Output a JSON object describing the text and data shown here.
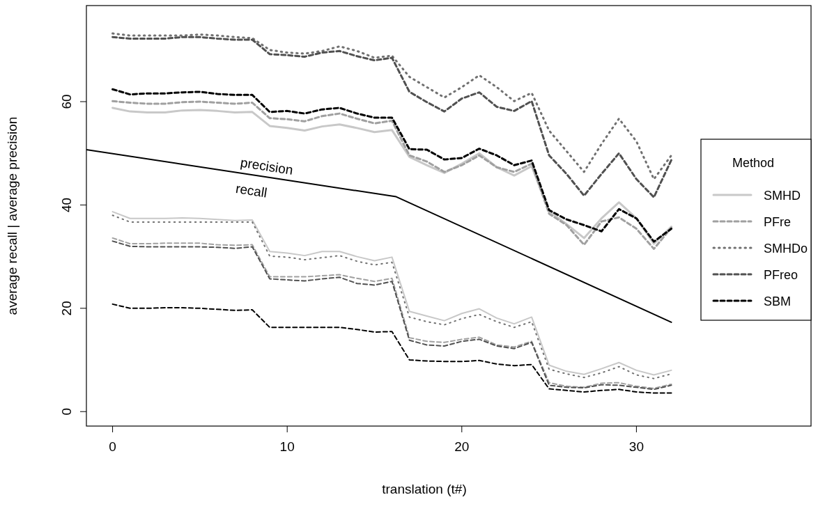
{
  "chart_data": {
    "type": "line",
    "xlabel": "translation (t#)",
    "ylabel": "average recall  |  average precision",
    "legend_title": "Method",
    "legend": "right",
    "grid": false,
    "marker": "none",
    "x": [
      0,
      1,
      2,
      3,
      4,
      5,
      6,
      7,
      8,
      9,
      10,
      11,
      12,
      13,
      14,
      15,
      16,
      17,
      18,
      19,
      20,
      21,
      22,
      23,
      24,
      25,
      26,
      27,
      28,
      29,
      30,
      31,
      32
    ],
    "xlim": [
      -1.5,
      40
    ],
    "ylim": [
      -2.8,
      78.6
    ],
    "xticks": [
      0,
      10,
      20,
      30
    ],
    "yticks": [
      0,
      20,
      40,
      60
    ],
    "series": [
      {
        "name": "SMHD",
        "color": "#c8c8c8",
        "line_style": "solid",
        "values": [
          58.8,
          58.1,
          57.9,
          57.9,
          58.3,
          58.4,
          58.2,
          57.9,
          58,
          55.3,
          54.9,
          54.4,
          55.2,
          55.6,
          54.9,
          54.1,
          54.5,
          49.3,
          47.7,
          46.2,
          48,
          50,
          47.3,
          45.7,
          47.5,
          38.8,
          36.3,
          33.6,
          37.4,
          40.5,
          37.4,
          32.5,
          35.8
        ]
      },
      {
        "name": "PFre",
        "color": "#a0a0a0",
        "line_style": "dashed",
        "values": [
          60.1,
          59.8,
          59.6,
          59.6,
          59.9,
          60,
          59.8,
          59.6,
          59.8,
          56.8,
          56.6,
          56.2,
          57.2,
          57.7,
          56.7,
          55.8,
          56.3,
          49.6,
          48.4,
          46.4,
          47.7,
          49.6,
          47.3,
          46.4,
          48,
          38.3,
          36.1,
          32.3,
          36.8,
          37.6,
          35.4,
          31.5,
          35.6
        ]
      },
      {
        "name": "SMHDo",
        "color": "#707070",
        "line_style": "dotted",
        "values": [
          73.2,
          72.8,
          72.8,
          72.8,
          72.8,
          73,
          72.8,
          72.5,
          72.3,
          70,
          69.5,
          69.3,
          69.8,
          70.7,
          69.8,
          68.5,
          68.9,
          64.8,
          62.8,
          60.8,
          62.8,
          65.1,
          62.8,
          60.1,
          61.7,
          54.4,
          50.4,
          46.4,
          51.8,
          56.7,
          52.3,
          45,
          49.6
        ]
      },
      {
        "name": "PFreo",
        "color": "#505050",
        "line_style": "dashed",
        "values": [
          72.5,
          72.2,
          72.2,
          72.2,
          72.5,
          72.5,
          72.2,
          72,
          72,
          69.2,
          69,
          68.7,
          69.5,
          69.8,
          68.8,
          68,
          68.5,
          61.9,
          59.9,
          58.1,
          60.6,
          61.8,
          59,
          58.2,
          60.1,
          49.6,
          46,
          41.8,
          46,
          50,
          45,
          41.5,
          48.7
        ]
      },
      {
        "name": "SBM",
        "color": "#000000",
        "line_style": "dashed",
        "values": [
          62.4,
          61.4,
          61.6,
          61.6,
          61.8,
          61.9,
          61.5,
          61.3,
          61.3,
          58,
          58.2,
          57.7,
          58.5,
          58.8,
          57.7,
          56.9,
          56.9,
          50.8,
          50.7,
          48.8,
          49.1,
          50.9,
          49.6,
          47.7,
          48.6,
          39,
          37.2,
          36.1,
          34.9,
          39.2,
          37.4,
          32.9,
          35.4
        ]
      },
      {
        "color": "#c8c8c8",
        "line_style": "solid",
        "values": [
          38.7,
          37.4,
          37.4,
          37.4,
          37.5,
          37.4,
          37.2,
          37,
          37.1,
          31,
          30.7,
          30.2,
          31,
          31,
          30,
          29.2,
          29.9,
          19.4,
          18.5,
          17.6,
          19,
          19.9,
          18.1,
          17,
          18.3,
          9,
          7.8,
          7.2,
          8.3,
          9.5,
          8,
          7.1,
          8
        ]
      },
      {
        "color": "#a0a0a0",
        "line_style": "dashed",
        "values": [
          33.6,
          32.5,
          32.5,
          32.6,
          32.6,
          32.6,
          32.3,
          32.2,
          32.3,
          26.1,
          26.1,
          26.1,
          26.3,
          26.5,
          25.8,
          25.2,
          25.8,
          14.3,
          13.6,
          13.4,
          14,
          14.4,
          12.9,
          12.5,
          13.6,
          5.6,
          4.9,
          4.7,
          5.5,
          5.6,
          4.9,
          4.5,
          5.3
        ]
      },
      {
        "color": "#707070",
        "line_style": "dotted",
        "values": [
          38,
          36.7,
          36.7,
          36.7,
          36.7,
          36.7,
          36.7,
          36.7,
          36.7,
          30.1,
          29.9,
          29.4,
          29.8,
          30.2,
          29.1,
          28.4,
          28.9,
          18.3,
          17.4,
          16.8,
          18,
          18.8,
          17.4,
          16.3,
          17.4,
          8.2,
          7.3,
          6.6,
          7.5,
          8.7,
          7.1,
          6.4,
          7.3
        ]
      },
      {
        "color": "#505050",
        "line_style": "dashed",
        "values": [
          33,
          32,
          31.9,
          31.9,
          31.9,
          31.9,
          31.8,
          31.6,
          31.9,
          25.7,
          25.5,
          25.3,
          25.7,
          26,
          24.8,
          24.5,
          25.2,
          13.8,
          12.9,
          12.7,
          13.6,
          14,
          12.7,
          12.2,
          13.4,
          5.1,
          4.7,
          4.6,
          5.2,
          5.1,
          4.7,
          4.3,
          5.1
        ]
      },
      {
        "color": "#000000",
        "line_style": "dashed",
        "values": [
          20.8,
          20,
          20,
          20.1,
          20.1,
          20,
          19.8,
          19.6,
          19.7,
          16.3,
          16.3,
          16.3,
          16.3,
          16.3,
          15.9,
          15.4,
          15.5,
          10,
          9.8,
          9.7,
          9.7,
          9.9,
          9.2,
          8.9,
          9.1,
          4.4,
          4.1,
          3.8,
          4.1,
          4.3,
          3.8,
          3.6,
          3.6
        ]
      },
      {
        "color": "#000000",
        "line_style": "solid",
        "x": [
          -1.5,
          16.24,
          32
        ],
        "values": [
          50.7,
          41.6,
          17.3
        ]
      }
    ],
    "annotations": [
      "precision",
      "recall"
    ]
  }
}
